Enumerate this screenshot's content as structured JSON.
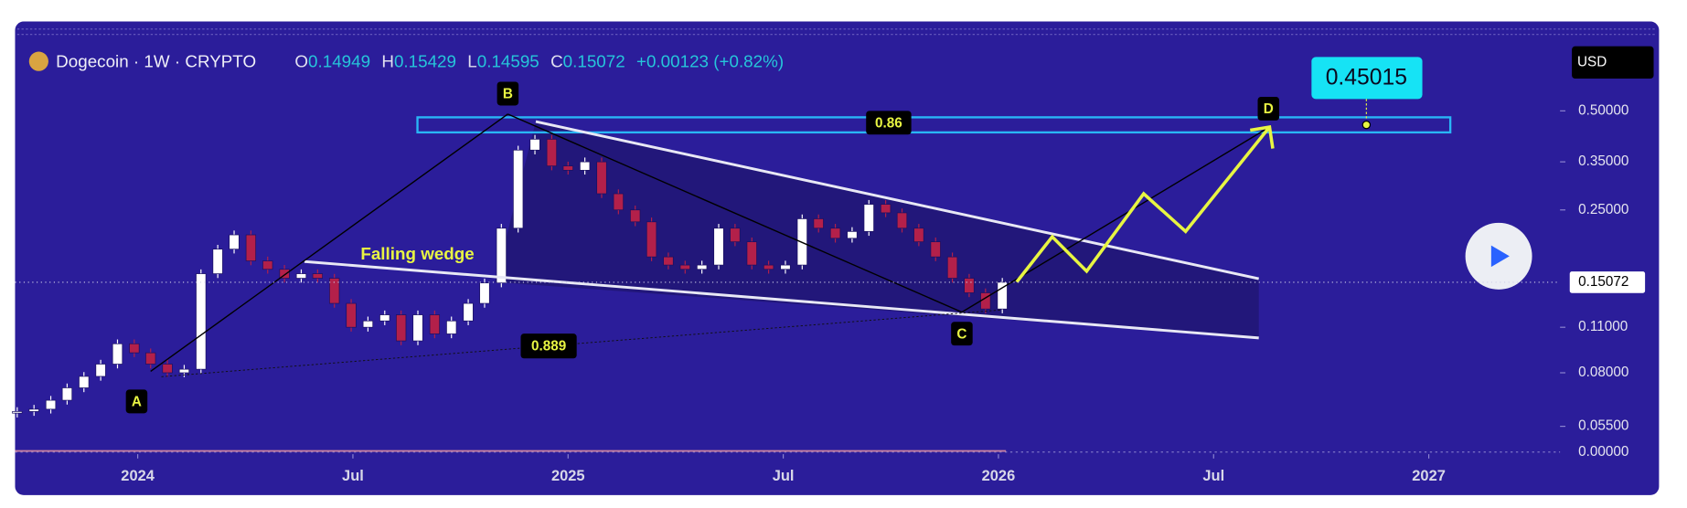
{
  "chart_data": {
    "type": "candlestick",
    "title": "Dogecoin · 1W · CRYPTO",
    "header": [
      {
        "label": "O",
        "value": "0.14949"
      },
      {
        "label": "H",
        "value": "0.15429"
      },
      {
        "label": "L",
        "value": "0.14595"
      },
      {
        "label": "C",
        "value": "0.15072"
      }
    ],
    "change": "+0.00123 (+0.82%)",
    "currency": "USD",
    "last_price": {
      "value": 0.15072,
      "label": "0.15072"
    },
    "x": [
      2023.72,
      2023.759,
      2023.798,
      2023.836,
      2023.875,
      2023.914,
      2023.953,
      2023.992,
      2024.03,
      2024.069,
      2024.108,
      2024.147,
      2024.186,
      2024.224,
      2024.263,
      2024.302,
      2024.341,
      2024.38,
      2024.418,
      2024.457,
      2024.496,
      2024.535,
      2024.574,
      2024.612,
      2024.651,
      2024.69,
      2024.729,
      2024.768,
      2024.806,
      2024.845,
      2024.884,
      2024.923,
      2024.962,
      2025,
      2025.039,
      2025.078,
      2025.117,
      2025.156,
      2025.194,
      2025.233,
      2025.272,
      2025.311,
      2025.35,
      2025.388,
      2025.427,
      2025.466,
      2025.505,
      2025.544,
      2025.582,
      2025.621,
      2025.66,
      2025.699,
      2025.738,
      2025.776,
      2025.815,
      2025.854,
      2025.893,
      2025.932,
      2025.97,
      2026.009
    ],
    "series": [
      {
        "values": [
          0.061,
          0.062,
          0.066,
          0.072,
          0.078,
          0.085,
          0.098,
          0.092,
          0.085,
          0.08,
          0.082,
          0.16,
          0.19,
          0.21,
          0.175,
          0.165,
          0.155,
          0.16,
          0.155,
          0.13,
          0.11,
          0.115,
          0.12,
          0.1,
          0.12,
          0.105,
          0.115,
          0.13,
          0.15,
          0.22,
          0.38,
          0.41,
          0.34,
          0.33,
          0.35,
          0.28,
          0.25,
          0.23,
          0.18,
          0.17,
          0.165,
          0.17,
          0.22,
          0.2,
          0.17,
          0.165,
          0.17,
          0.235,
          0.22,
          0.205,
          0.215,
          0.26,
          0.245,
          0.22,
          0.2,
          0.18,
          0.155,
          0.14,
          0.125,
          0.1507
        ]
      }
    ],
    "up_color": "#ffffff",
    "down_color": "#b3204a",
    "log_scale": true,
    "xlim": [
      2023.715,
      2027.295
    ],
    "xticks": [
      {
        "value": 2024,
        "label": "2024"
      },
      {
        "value": 2024.5,
        "label": "Jul"
      },
      {
        "value": 2025,
        "label": "2025"
      },
      {
        "value": 2025.5,
        "label": "Jul"
      },
      {
        "value": 2026,
        "label": "2026"
      },
      {
        "value": 2026.5,
        "label": "Jul"
      },
      {
        "value": 2027,
        "label": "2027"
      }
    ],
    "ylim": [
      0.0495,
      0.8
    ],
    "yticks": [
      {
        "value": 0.5,
        "label": "0.50000"
      },
      {
        "value": 0.35,
        "label": "0.35000"
      },
      {
        "value": 0.25,
        "label": "0.25000"
      },
      {
        "value": 0.11,
        "label": "0.11000"
      },
      {
        "value": 0.08,
        "label": "0.08000"
      },
      {
        "value": 0.055,
        "label": "0.05500"
      }
    ],
    "indicator": {
      "yticks": [
        {
          "value": 0,
          "label": "0.00000"
        }
      ]
    },
    "annotations": {
      "points": [
        "A",
        "B",
        "C",
        "D"
      ],
      "pattern": "Falling wedge",
      "fib_upper": "0.86",
      "fib_lower": "0.889",
      "target": "0.45015"
    }
  }
}
